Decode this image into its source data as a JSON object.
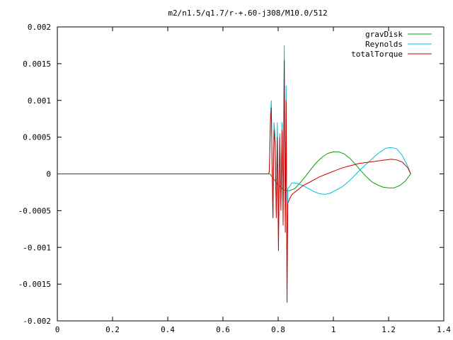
{
  "chart_data": {
    "type": "line",
    "title": "m2/n1.5/q1.7/r-+.60-j308/M10.0/512",
    "xlabel": "",
    "ylabel": "",
    "xlim": [
      0,
      1.4
    ],
    "ylim": [
      -0.002,
      0.002
    ],
    "xticks": [
      0,
      0.2,
      0.4,
      0.6,
      0.8,
      1,
      1.2,
      1.4
    ],
    "xtick_labels": [
      "0",
      "0.2",
      "0.4",
      "0.6",
      "0.8",
      "1",
      "1.2",
      "1.4"
    ],
    "yticks": [
      -0.002,
      -0.0015,
      -0.001,
      -0.0005,
      0,
      0.0005,
      0.001,
      0.0015,
      0.002
    ],
    "ytick_labels": [
      "-0.002",
      "-0.0015",
      "-0.001",
      "-0.0005",
      "0",
      "0.0005",
      "0.001",
      "0.0015",
      "0.002"
    ],
    "grid": false,
    "legend_position": "top-right",
    "series": [
      {
        "name": "gravDisk",
        "color": "#00a000",
        "points": [
          [
            0,
            0
          ],
          [
            0.77,
            0
          ],
          [
            0.78,
            -5e-05
          ],
          [
            0.8,
            -0.00015
          ],
          [
            0.82,
            -0.00022
          ],
          [
            0.84,
            -0.00023
          ],
          [
            0.86,
            -0.0002
          ],
          [
            0.88,
            -0.00012
          ],
          [
            0.9,
            -3e-05
          ],
          [
            0.92,
            7e-05
          ],
          [
            0.94,
            0.00016
          ],
          [
            0.96,
            0.00023
          ],
          [
            0.98,
            0.00028
          ],
          [
            1.0,
            0.0003
          ],
          [
            1.02,
            0.0003
          ],
          [
            1.04,
            0.00027
          ],
          [
            1.06,
            0.00021
          ],
          [
            1.08,
            0.00013
          ],
          [
            1.1,
            4e-05
          ],
          [
            1.12,
            -4e-05
          ],
          [
            1.14,
            -0.00011
          ],
          [
            1.16,
            -0.00015
          ],
          [
            1.18,
            -0.00018
          ],
          [
            1.2,
            -0.00019
          ],
          [
            1.22,
            -0.00019
          ],
          [
            1.24,
            -0.00016
          ],
          [
            1.26,
            -0.0001
          ],
          [
            1.28,
            0
          ]
        ]
      },
      {
        "name": "Reynolds",
        "color": "#00c0d8",
        "points": [
          [
            0,
            0
          ],
          [
            0.765,
            0
          ],
          [
            0.768,
            5e-05
          ],
          [
            0.772,
            0.0008
          ],
          [
            0.775,
            0.001
          ],
          [
            0.778,
            0.0002
          ],
          [
            0.781,
            -0.0006
          ],
          [
            0.785,
            0.0007
          ],
          [
            0.789,
            0.0005
          ],
          [
            0.793,
            -0.0005
          ],
          [
            0.797,
            0.0007
          ],
          [
            0.801,
            -0.00065
          ],
          [
            0.806,
            0.00055
          ],
          [
            0.81,
            -0.00045
          ],
          [
            0.814,
            0.0007
          ],
          [
            0.818,
            -0.0004
          ],
          [
            0.822,
            0.00175
          ],
          [
            0.826,
            -0.0006
          ],
          [
            0.829,
            0.0012
          ],
          [
            0.832,
            -0.00155
          ],
          [
            0.835,
            -0.0002
          ],
          [
            0.84,
            -0.00018
          ],
          [
            0.85,
            -0.00012
          ],
          [
            0.87,
            -0.00013
          ],
          [
            0.89,
            -0.00016
          ],
          [
            0.91,
            -0.0002
          ],
          [
            0.93,
            -0.00024
          ],
          [
            0.95,
            -0.00027
          ],
          [
            0.97,
            -0.00028
          ],
          [
            0.99,
            -0.00026
          ],
          [
            1.01,
            -0.00022
          ],
          [
            1.03,
            -0.00018
          ],
          [
            1.05,
            -0.00012
          ],
          [
            1.07,
            -5e-05
          ],
          [
            1.09,
            3e-05
          ],
          [
            1.11,
            0.0001
          ],
          [
            1.13,
            0.00017
          ],
          [
            1.15,
            0.00024
          ],
          [
            1.17,
            0.0003
          ],
          [
            1.19,
            0.00035
          ],
          [
            1.21,
            0.00036
          ],
          [
            1.23,
            0.00034
          ],
          [
            1.25,
            0.00025
          ],
          [
            1.27,
            0.0001
          ],
          [
            1.28,
            0
          ]
        ]
      },
      {
        "name": "totalTorque",
        "color": "#d00000",
        "points": [
          [
            0,
            0
          ],
          [
            0.765,
            0
          ],
          [
            0.768,
            3e-05
          ],
          [
            0.772,
            0.0007
          ],
          [
            0.775,
            0.0009
          ],
          [
            0.778,
            0.0001
          ],
          [
            0.781,
            -0.0006
          ],
          [
            0.785,
            0.0006
          ],
          [
            0.789,
            0.0004
          ],
          [
            0.793,
            -0.0006
          ],
          [
            0.797,
            0.0005
          ],
          [
            0.801,
            -0.00105
          ],
          [
            0.806,
            0.0005
          ],
          [
            0.81,
            -0.0005
          ],
          [
            0.814,
            0.0006
          ],
          [
            0.818,
            -0.0007
          ],
          [
            0.822,
            0.00155
          ],
          [
            0.826,
            -0.0008
          ],
          [
            0.829,
            0.001
          ],
          [
            0.832,
            -0.00175
          ],
          [
            0.835,
            -0.0004
          ],
          [
            0.84,
            -0.00035
          ],
          [
            0.85,
            -0.00028
          ],
          [
            0.87,
            -0.00022
          ],
          [
            0.89,
            -0.00016
          ],
          [
            0.91,
            -0.00012
          ],
          [
            0.93,
            -8e-05
          ],
          [
            0.95,
            -4e-05
          ],
          [
            0.97,
            -1e-05
          ],
          [
            0.99,
            2e-05
          ],
          [
            1.01,
            5e-05
          ],
          [
            1.03,
            8e-05
          ],
          [
            1.05,
            0.0001
          ],
          [
            1.07,
            0.00012
          ],
          [
            1.09,
            0.00014
          ],
          [
            1.11,
            0.00015
          ],
          [
            1.13,
            0.00016
          ],
          [
            1.15,
            0.00017
          ],
          [
            1.17,
            0.00018
          ],
          [
            1.19,
            0.00019
          ],
          [
            1.21,
            0.0002
          ],
          [
            1.23,
            0.00019
          ],
          [
            1.25,
            0.00016
          ],
          [
            1.27,
            8e-05
          ],
          [
            1.28,
            0
          ]
        ]
      }
    ]
  }
}
